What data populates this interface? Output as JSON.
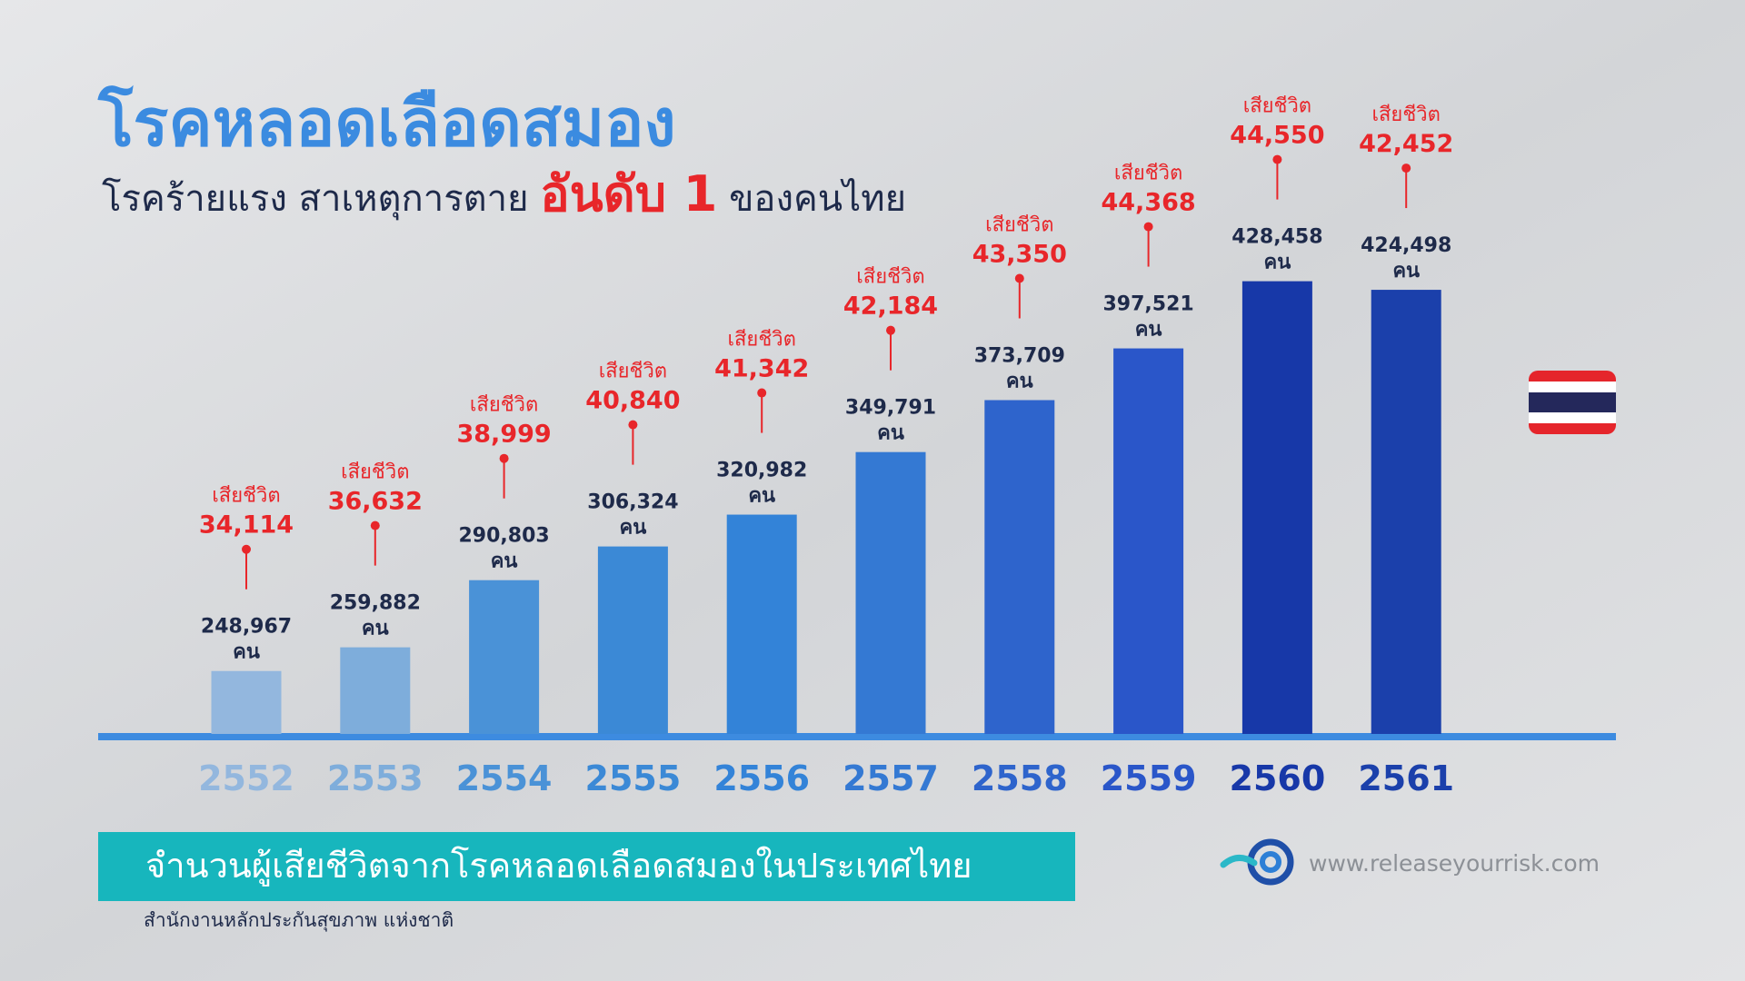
{
  "chart_data": {
    "type": "bar",
    "title": "โรคหลอดเลือดสมอง",
    "subtitle": [
      "โรคร้ายแรง สาเหตุการตาย",
      "อันดับ 1",
      "ของคนไทย"
    ],
    "categories": [
      "2552",
      "2553",
      "2554",
      "2555",
      "2556",
      "2557",
      "2558",
      "2559",
      "2560",
      "2561"
    ],
    "values": [
      248967,
      259882,
      290803,
      306324,
      320982,
      349791,
      373709,
      397521,
      428458,
      424498
    ],
    "value_labels": [
      "248,967",
      "259,882",
      "290,803",
      "306,324",
      "320,982",
      "349,791",
      "373,709",
      "397,521",
      "428,458",
      "424,498"
    ],
    "unit": "คน",
    "colors": [
      "#93b7de",
      "#7eaddb",
      "#4a92d7",
      "#3b89d6",
      "#3383d8",
      "#3479d3",
      "#2e64cc",
      "#2a56c9",
      "#1738a8",
      "#1b40ab"
    ],
    "ylim": [
      220000,
      440000
    ],
    "deaths": {
      "label": "เสียชีวิต",
      "color": "#e8262a",
      "values": [
        34114,
        36632,
        38999,
        40840,
        41342,
        42184,
        43350,
        44368,
        44550,
        42452
      ],
      "value_labels": [
        "34,114",
        "36,632",
        "38,999",
        "40,840",
        "41,342",
        "42,184",
        "43,350",
        "44,368",
        "44,550",
        "42,452"
      ]
    },
    "caption": "จำนวนผู้เสียชีวิตจากโรคหลอดเลือดสมองในประเทศไทย",
    "source": "สำนักงานหลักประกันสุขภาพ แห่งชาติ",
    "website": "www.releaseyourrisk.com"
  }
}
